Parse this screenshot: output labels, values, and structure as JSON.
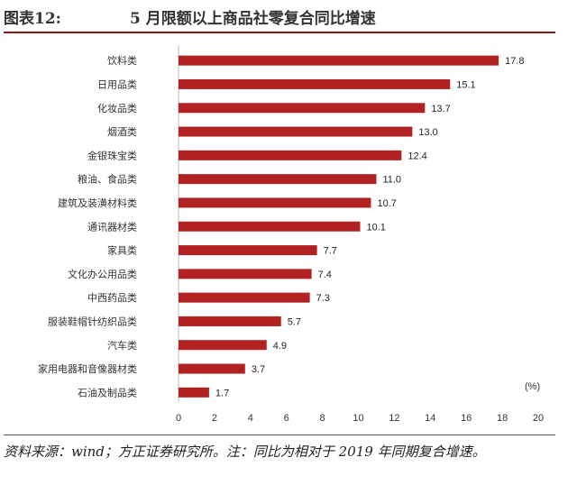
{
  "header": {
    "label": "图表12:",
    "title": "5 月限额以上商品社零复合同比增速"
  },
  "footer": {
    "source": "资料来源：wind；方正证券研究所。注：同比为相对于 2019 年同期复合增速。"
  },
  "chart_data": {
    "type": "bar",
    "orientation": "horizontal",
    "categories": [
      "饮料类",
      "日用品类",
      "化妆品类",
      "烟酒类",
      "金银珠宝类",
      "粮油、食品类",
      "建筑及装潢材料类",
      "通讯器材类",
      "家具类",
      "文化办公用品类",
      "中西药品类",
      "服装鞋帽针纺织品类",
      "汽车类",
      "家用电器和音像器材类",
      "石油及制品类"
    ],
    "values": [
      17.8,
      15.1,
      13.7,
      13.0,
      12.4,
      11.0,
      10.7,
      10.1,
      7.7,
      7.4,
      7.3,
      5.7,
      4.9,
      3.7,
      1.7
    ],
    "data_labels": [
      "17.8",
      "15.1",
      "13.7",
      "13.0",
      "12.4",
      "11.0",
      "10.7",
      "10.1",
      "7.7",
      "7.4",
      "7.3",
      "5.7",
      "4.9",
      "3.7",
      "1.7"
    ],
    "xlim": [
      0,
      20
    ],
    "xticks": [
      "0",
      "2",
      "4",
      "6",
      "8",
      "10",
      "12",
      "14",
      "16",
      "18",
      "20"
    ],
    "unit_label": "(%)",
    "bar_color": "#b22222",
    "grid": false
  }
}
